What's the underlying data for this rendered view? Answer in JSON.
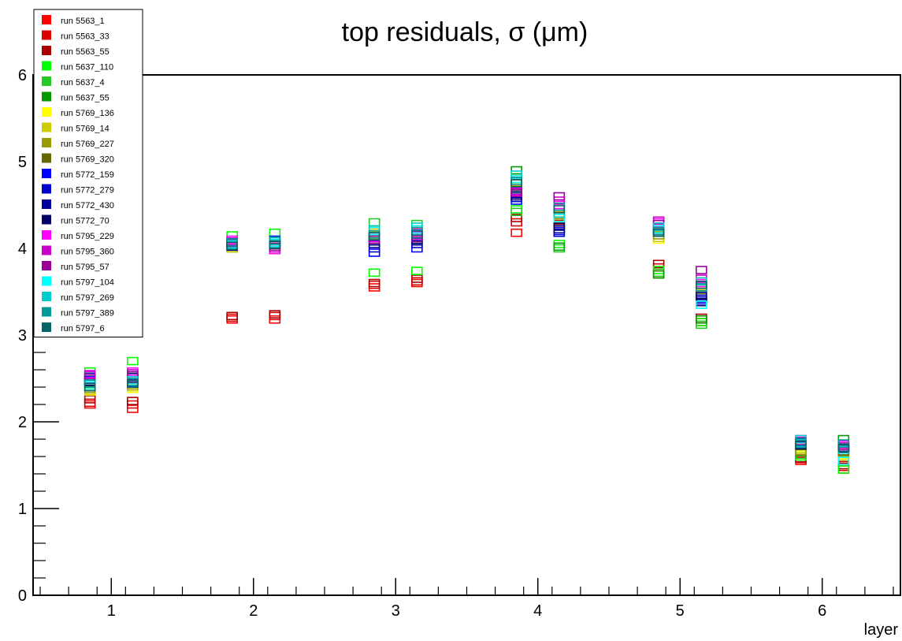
{
  "chart_data": {
    "type": "scatter",
    "title": "top residuals, σ (μm)",
    "xlabel": "layer",
    "ylabel": "",
    "xlim": [
      0.45,
      6.55
    ],
    "ylim": [
      0,
      6
    ],
    "xticks": [
      "1",
      "2",
      "3",
      "4",
      "5",
      "6"
    ],
    "yticks": [
      "0",
      "1",
      "2",
      "3",
      "4",
      "5",
      "6"
    ],
    "legend_position": "top-left",
    "grid": false,
    "series": [
      {
        "name": "run 5563_1",
        "color": "#ff0000",
        "points": [
          [
            0.85,
            2.2
          ],
          [
            1.15,
            2.15
          ],
          [
            1.85,
            3.18
          ],
          [
            2.15,
            3.18
          ],
          [
            2.85,
            3.55
          ],
          [
            3.15,
            3.6
          ],
          [
            3.85,
            4.18
          ],
          [
            4.15,
            4.3
          ],
          [
            4.85,
            3.7
          ],
          [
            5.15,
            3.15
          ],
          [
            5.85,
            1.55
          ],
          [
            6.15,
            1.45
          ]
        ]
      },
      {
        "name": "run 5563_33",
        "color": "#dd0000",
        "points": [
          [
            0.85,
            2.22
          ],
          [
            1.15,
            2.2
          ],
          [
            1.85,
            3.2
          ],
          [
            2.15,
            3.22
          ],
          [
            2.85,
            3.58
          ],
          [
            3.15,
            3.62
          ],
          [
            3.85,
            4.3
          ],
          [
            4.15,
            4.28
          ],
          [
            4.85,
            3.78
          ],
          [
            5.15,
            3.18
          ],
          [
            5.85,
            1.57
          ],
          [
            6.15,
            1.48
          ]
        ]
      },
      {
        "name": "run 5563_55",
        "color": "#aa0000",
        "points": [
          [
            0.85,
            2.26
          ],
          [
            1.15,
            2.24
          ],
          [
            1.85,
            3.22
          ],
          [
            2.15,
            3.24
          ],
          [
            2.85,
            3.6
          ],
          [
            3.15,
            3.65
          ],
          [
            3.85,
            4.35
          ],
          [
            4.15,
            4.32
          ],
          [
            4.85,
            3.82
          ],
          [
            5.15,
            3.2
          ],
          [
            5.85,
            1.58
          ],
          [
            6.15,
            1.5
          ]
        ]
      },
      {
        "name": "run 5637_110",
        "color": "#00ff00",
        "points": [
          [
            0.85,
            2.58
          ],
          [
            1.15,
            2.7
          ],
          [
            1.85,
            4.15
          ],
          [
            2.15,
            4.18
          ],
          [
            2.85,
            3.72
          ],
          [
            3.15,
            3.74
          ],
          [
            3.85,
            4.45
          ],
          [
            4.15,
            4.05
          ],
          [
            4.85,
            3.75
          ],
          [
            5.15,
            3.15
          ],
          [
            5.85,
            1.6
          ],
          [
            6.15,
            1.45
          ]
        ]
      },
      {
        "name": "run 5637_4",
        "color": "#22cc22",
        "points": [
          [
            0.85,
            2.4
          ],
          [
            1.15,
            2.45
          ],
          [
            1.85,
            4.05
          ],
          [
            2.15,
            4.08
          ],
          [
            2.85,
            4.3
          ],
          [
            3.15,
            4.28
          ],
          [
            3.85,
            4.42
          ],
          [
            4.15,
            4.0
          ],
          [
            4.85,
            3.72
          ],
          [
            5.15,
            3.12
          ],
          [
            5.85,
            1.62
          ],
          [
            6.15,
            1.65
          ]
        ]
      },
      {
        "name": "run 5637_55",
        "color": "#009900",
        "points": [
          [
            0.85,
            2.45
          ],
          [
            1.15,
            2.5
          ],
          [
            1.85,
            4.0
          ],
          [
            2.15,
            4.05
          ],
          [
            2.85,
            4.1
          ],
          [
            3.15,
            4.1
          ],
          [
            3.85,
            4.9
          ],
          [
            4.15,
            4.02
          ],
          [
            4.85,
            3.7
          ],
          [
            5.15,
            3.18
          ],
          [
            5.85,
            1.65
          ],
          [
            6.15,
            1.8
          ]
        ]
      },
      {
        "name": "run 5769_136",
        "color": "#ffff00",
        "points": [
          [
            0.85,
            2.35
          ],
          [
            1.15,
            2.38
          ],
          [
            1.85,
            4.02
          ],
          [
            2.15,
            4.04
          ],
          [
            2.85,
            4.15
          ],
          [
            3.15,
            4.12
          ],
          [
            3.85,
            4.7
          ],
          [
            4.15,
            4.3
          ],
          [
            4.85,
            4.1
          ],
          [
            5.15,
            3.5
          ],
          [
            5.85,
            1.7
          ],
          [
            6.15,
            1.62
          ]
        ]
      },
      {
        "name": "run 5769_14",
        "color": "#cccc00",
        "points": [
          [
            0.85,
            2.36
          ],
          [
            1.15,
            2.4
          ],
          [
            1.85,
            4.0
          ],
          [
            2.15,
            4.02
          ],
          [
            2.85,
            4.18
          ],
          [
            3.15,
            4.15
          ],
          [
            3.85,
            4.72
          ],
          [
            4.15,
            4.35
          ],
          [
            4.85,
            4.12
          ],
          [
            5.15,
            3.48
          ],
          [
            5.85,
            1.68
          ],
          [
            6.15,
            1.6
          ]
        ]
      },
      {
        "name": "run 5769_227",
        "color": "#999900",
        "points": [
          [
            0.85,
            2.38
          ],
          [
            1.15,
            2.42
          ],
          [
            1.85,
            4.03
          ],
          [
            2.15,
            4.05
          ],
          [
            2.85,
            4.2
          ],
          [
            3.15,
            4.18
          ],
          [
            3.85,
            4.68
          ],
          [
            4.15,
            4.38
          ],
          [
            4.85,
            4.15
          ],
          [
            5.15,
            3.52
          ],
          [
            5.85,
            1.66
          ],
          [
            6.15,
            1.64
          ]
        ]
      },
      {
        "name": "run 5769_320",
        "color": "#666600",
        "points": [
          [
            0.85,
            2.4
          ],
          [
            1.15,
            2.44
          ],
          [
            1.85,
            4.05
          ],
          [
            2.15,
            4.06
          ],
          [
            2.85,
            4.12
          ],
          [
            3.15,
            4.2
          ],
          [
            3.85,
            4.75
          ],
          [
            4.15,
            4.4
          ],
          [
            4.85,
            4.18
          ],
          [
            5.15,
            3.55
          ],
          [
            5.85,
            1.72
          ],
          [
            6.15,
            1.66
          ]
        ]
      },
      {
        "name": "run 5772_159",
        "color": "#0000ff",
        "points": [
          [
            0.85,
            2.48
          ],
          [
            1.15,
            2.45
          ],
          [
            1.85,
            4.08
          ],
          [
            2.15,
            4.1
          ],
          [
            2.85,
            3.95
          ],
          [
            3.15,
            4.0
          ],
          [
            3.85,
            4.55
          ],
          [
            4.15,
            4.2
          ],
          [
            4.85,
            4.25
          ],
          [
            5.15,
            3.4
          ],
          [
            5.85,
            1.75
          ],
          [
            6.15,
            1.68
          ]
        ]
      },
      {
        "name": "run 5772_279",
        "color": "#0000cc",
        "points": [
          [
            0.85,
            2.5
          ],
          [
            1.15,
            2.48
          ],
          [
            1.85,
            4.06
          ],
          [
            2.15,
            4.08
          ],
          [
            2.85,
            4.0
          ],
          [
            3.15,
            4.05
          ],
          [
            3.85,
            4.58
          ],
          [
            4.15,
            4.18
          ],
          [
            4.85,
            4.22
          ],
          [
            5.15,
            3.42
          ],
          [
            5.85,
            1.74
          ],
          [
            6.15,
            1.7
          ]
        ]
      },
      {
        "name": "run 5772_430",
        "color": "#000099",
        "points": [
          [
            0.85,
            2.52
          ],
          [
            1.15,
            2.5
          ],
          [
            1.85,
            4.04
          ],
          [
            2.15,
            4.06
          ],
          [
            2.85,
            4.05
          ],
          [
            3.15,
            4.08
          ],
          [
            3.85,
            4.6
          ],
          [
            4.15,
            4.22
          ],
          [
            4.85,
            4.2
          ],
          [
            5.15,
            3.45
          ],
          [
            5.85,
            1.76
          ],
          [
            6.15,
            1.72
          ]
        ]
      },
      {
        "name": "run 5772_70",
        "color": "#000066",
        "points": [
          [
            0.85,
            2.46
          ],
          [
            1.15,
            2.52
          ],
          [
            1.85,
            4.02
          ],
          [
            2.15,
            4.04
          ],
          [
            2.85,
            4.08
          ],
          [
            3.15,
            4.1
          ],
          [
            3.85,
            4.62
          ],
          [
            4.15,
            4.25
          ],
          [
            4.85,
            4.18
          ],
          [
            5.15,
            3.38
          ],
          [
            5.85,
            1.73
          ],
          [
            6.15,
            1.69
          ]
        ]
      },
      {
        "name": "run 5795_229",
        "color": "#ff00ff",
        "points": [
          [
            0.85,
            2.55
          ],
          [
            1.15,
            2.58
          ],
          [
            1.85,
            4.1
          ],
          [
            2.15,
            3.98
          ],
          [
            2.85,
            4.12
          ],
          [
            3.15,
            4.15
          ],
          [
            3.85,
            4.65
          ],
          [
            4.15,
            4.5
          ],
          [
            4.85,
            4.3
          ],
          [
            5.15,
            3.6
          ],
          [
            5.85,
            1.8
          ],
          [
            6.15,
            1.74
          ]
        ]
      },
      {
        "name": "run 5795_360",
        "color": "#cc00cc",
        "points": [
          [
            0.85,
            2.54
          ],
          [
            1.15,
            2.56
          ],
          [
            1.85,
            4.08
          ],
          [
            2.15,
            4.0
          ],
          [
            2.85,
            4.14
          ],
          [
            3.15,
            4.18
          ],
          [
            3.85,
            4.66
          ],
          [
            4.15,
            4.55
          ],
          [
            4.85,
            4.32
          ],
          [
            5.15,
            3.65
          ],
          [
            5.85,
            1.78
          ],
          [
            6.15,
            1.72
          ]
        ]
      },
      {
        "name": "run 5795_57",
        "color": "#990099",
        "points": [
          [
            0.85,
            2.5
          ],
          [
            1.15,
            2.54
          ],
          [
            1.85,
            4.06
          ],
          [
            2.15,
            4.02
          ],
          [
            2.85,
            4.1
          ],
          [
            3.15,
            4.12
          ],
          [
            3.85,
            4.64
          ],
          [
            4.15,
            4.6
          ],
          [
            4.85,
            4.28
          ],
          [
            5.15,
            3.75
          ],
          [
            5.85,
            1.77
          ],
          [
            6.15,
            1.7
          ]
        ]
      },
      {
        "name": "run 5797_104",
        "color": "#00ffff",
        "points": [
          [
            0.85,
            2.42
          ],
          [
            1.15,
            2.46
          ],
          [
            1.85,
            4.04
          ],
          [
            2.15,
            4.06
          ],
          [
            2.85,
            4.2
          ],
          [
            3.15,
            4.22
          ],
          [
            3.85,
            4.8
          ],
          [
            4.15,
            4.35
          ],
          [
            4.85,
            4.22
          ],
          [
            5.15,
            3.35
          ],
          [
            5.85,
            1.75
          ],
          [
            6.15,
            1.55
          ]
        ]
      },
      {
        "name": "run 5797_269",
        "color": "#00cccc",
        "points": [
          [
            0.85,
            2.44
          ],
          [
            1.15,
            2.48
          ],
          [
            1.85,
            4.05
          ],
          [
            2.15,
            4.08
          ],
          [
            2.85,
            4.22
          ],
          [
            3.15,
            4.25
          ],
          [
            3.85,
            4.85
          ],
          [
            4.15,
            4.4
          ],
          [
            4.85,
            4.25
          ],
          [
            5.15,
            3.62
          ],
          [
            5.85,
            1.8
          ],
          [
            6.15,
            1.68
          ]
        ]
      },
      {
        "name": "run 5797_389",
        "color": "#009999",
        "points": [
          [
            0.85,
            2.44
          ],
          [
            1.15,
            2.46
          ],
          [
            1.85,
            4.07
          ],
          [
            2.15,
            4.09
          ],
          [
            2.85,
            4.16
          ],
          [
            3.15,
            4.2
          ],
          [
            3.85,
            4.78
          ],
          [
            4.15,
            4.48
          ],
          [
            4.85,
            4.2
          ],
          [
            5.15,
            3.55
          ],
          [
            5.85,
            1.77
          ],
          [
            6.15,
            1.75
          ]
        ]
      },
      {
        "name": "run 5797_6",
        "color": "#006666",
        "points": [
          [
            0.85,
            2.4
          ],
          [
            1.15,
            2.44
          ],
          [
            1.85,
            4.03
          ],
          [
            2.15,
            4.04
          ],
          [
            2.85,
            4.14
          ],
          [
            3.15,
            4.16
          ],
          [
            3.85,
            4.75
          ],
          [
            4.15,
            4.45
          ],
          [
            4.85,
            4.18
          ],
          [
            5.15,
            3.58
          ],
          [
            5.85,
            1.74
          ],
          [
            6.15,
            1.7
          ]
        ]
      }
    ]
  }
}
